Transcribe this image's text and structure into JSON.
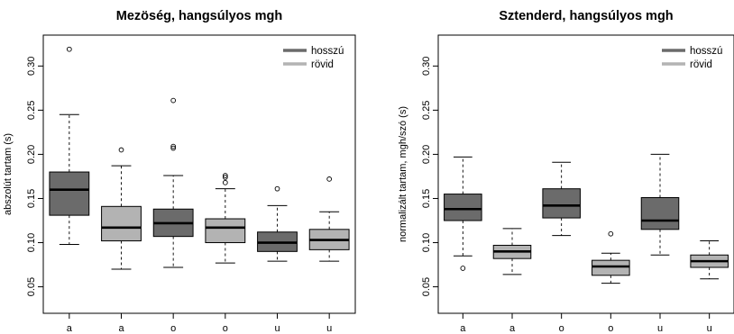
{
  "chart_data": [
    {
      "type": "boxplot",
      "title": "Mezöség, hangsúlyos mgh",
      "ylabel": "abszolút tartam (s)",
      "ylim": [
        0.02,
        0.335
      ],
      "yticks": [
        "0.05",
        "0.10",
        "0.15",
        "0.20",
        "0.25",
        "0.30"
      ],
      "categories": [
        "a",
        "a",
        "o",
        "o",
        "u",
        "u"
      ],
      "legend": {
        "position": "top-right",
        "entries": [
          {
            "label": "hosszú",
            "color": "#6b6b6b"
          },
          {
            "label": "rövid",
            "color": "#b3b3b3"
          }
        ]
      },
      "boxes": [
        {
          "group": "hosszú",
          "whisker_low": 0.098,
          "q1": 0.131,
          "median": 0.16,
          "q3": 0.18,
          "whisker_high": 0.245,
          "outliers": [
            0.319
          ]
        },
        {
          "group": "rövid",
          "whisker_low": 0.07,
          "q1": 0.102,
          "median": 0.117,
          "q3": 0.141,
          "whisker_high": 0.187,
          "outliers": [
            0.205
          ]
        },
        {
          "group": "hosszú",
          "whisker_low": 0.072,
          "q1": 0.107,
          "median": 0.122,
          "q3": 0.138,
          "whisker_high": 0.176,
          "outliers": [
            0.207,
            0.209,
            0.261
          ]
        },
        {
          "group": "rövid",
          "whisker_low": 0.077,
          "q1": 0.1,
          "median": 0.117,
          "q3": 0.127,
          "whisker_high": 0.161,
          "outliers": [
            0.168,
            0.174,
            0.176
          ]
        },
        {
          "group": "hosszú",
          "whisker_low": 0.079,
          "q1": 0.09,
          "median": 0.1,
          "q3": 0.112,
          "whisker_high": 0.142,
          "outliers": [
            0.161
          ]
        },
        {
          "group": "rövid",
          "whisker_low": 0.079,
          "q1": 0.092,
          "median": 0.103,
          "q3": 0.115,
          "whisker_high": 0.135,
          "outliers": [
            0.172
          ]
        }
      ]
    },
    {
      "type": "boxplot",
      "title": "Sztenderd, hangsúlyos mgh",
      "ylabel": "normalizált tartam, mgh/szó (s)",
      "ylim": [
        0.02,
        0.335
      ],
      "yticks": [
        "0.05",
        "0.10",
        "0.15",
        "0.20",
        "0.25",
        "0.30"
      ],
      "categories": [
        "a",
        "a",
        "o",
        "o",
        "u",
        "u"
      ],
      "legend": {
        "position": "top-right",
        "entries": [
          {
            "label": "hosszú",
            "color": "#6b6b6b"
          },
          {
            "label": "rövid",
            "color": "#b3b3b3"
          }
        ]
      },
      "boxes": [
        {
          "group": "hosszú",
          "whisker_low": 0.085,
          "q1": 0.125,
          "median": 0.138,
          "q3": 0.155,
          "whisker_high": 0.197,
          "outliers": [
            0.071
          ]
        },
        {
          "group": "rövid",
          "whisker_low": 0.064,
          "q1": 0.082,
          "median": 0.09,
          "q3": 0.097,
          "whisker_high": 0.116,
          "outliers": []
        },
        {
          "group": "hosszú",
          "whisker_low": 0.108,
          "q1": 0.128,
          "median": 0.142,
          "q3": 0.161,
          "whisker_high": 0.191,
          "outliers": []
        },
        {
          "group": "rövid",
          "whisker_low": 0.054,
          "q1": 0.063,
          "median": 0.073,
          "q3": 0.08,
          "whisker_high": 0.088,
          "outliers": [
            0.11
          ]
        },
        {
          "group": "hosszú",
          "whisker_low": 0.086,
          "q1": 0.115,
          "median": 0.125,
          "q3": 0.151,
          "whisker_high": 0.2,
          "outliers": []
        },
        {
          "group": "rövid",
          "whisker_low": 0.059,
          "q1": 0.072,
          "median": 0.079,
          "q3": 0.086,
          "whisker_high": 0.102,
          "outliers": []
        }
      ]
    }
  ]
}
